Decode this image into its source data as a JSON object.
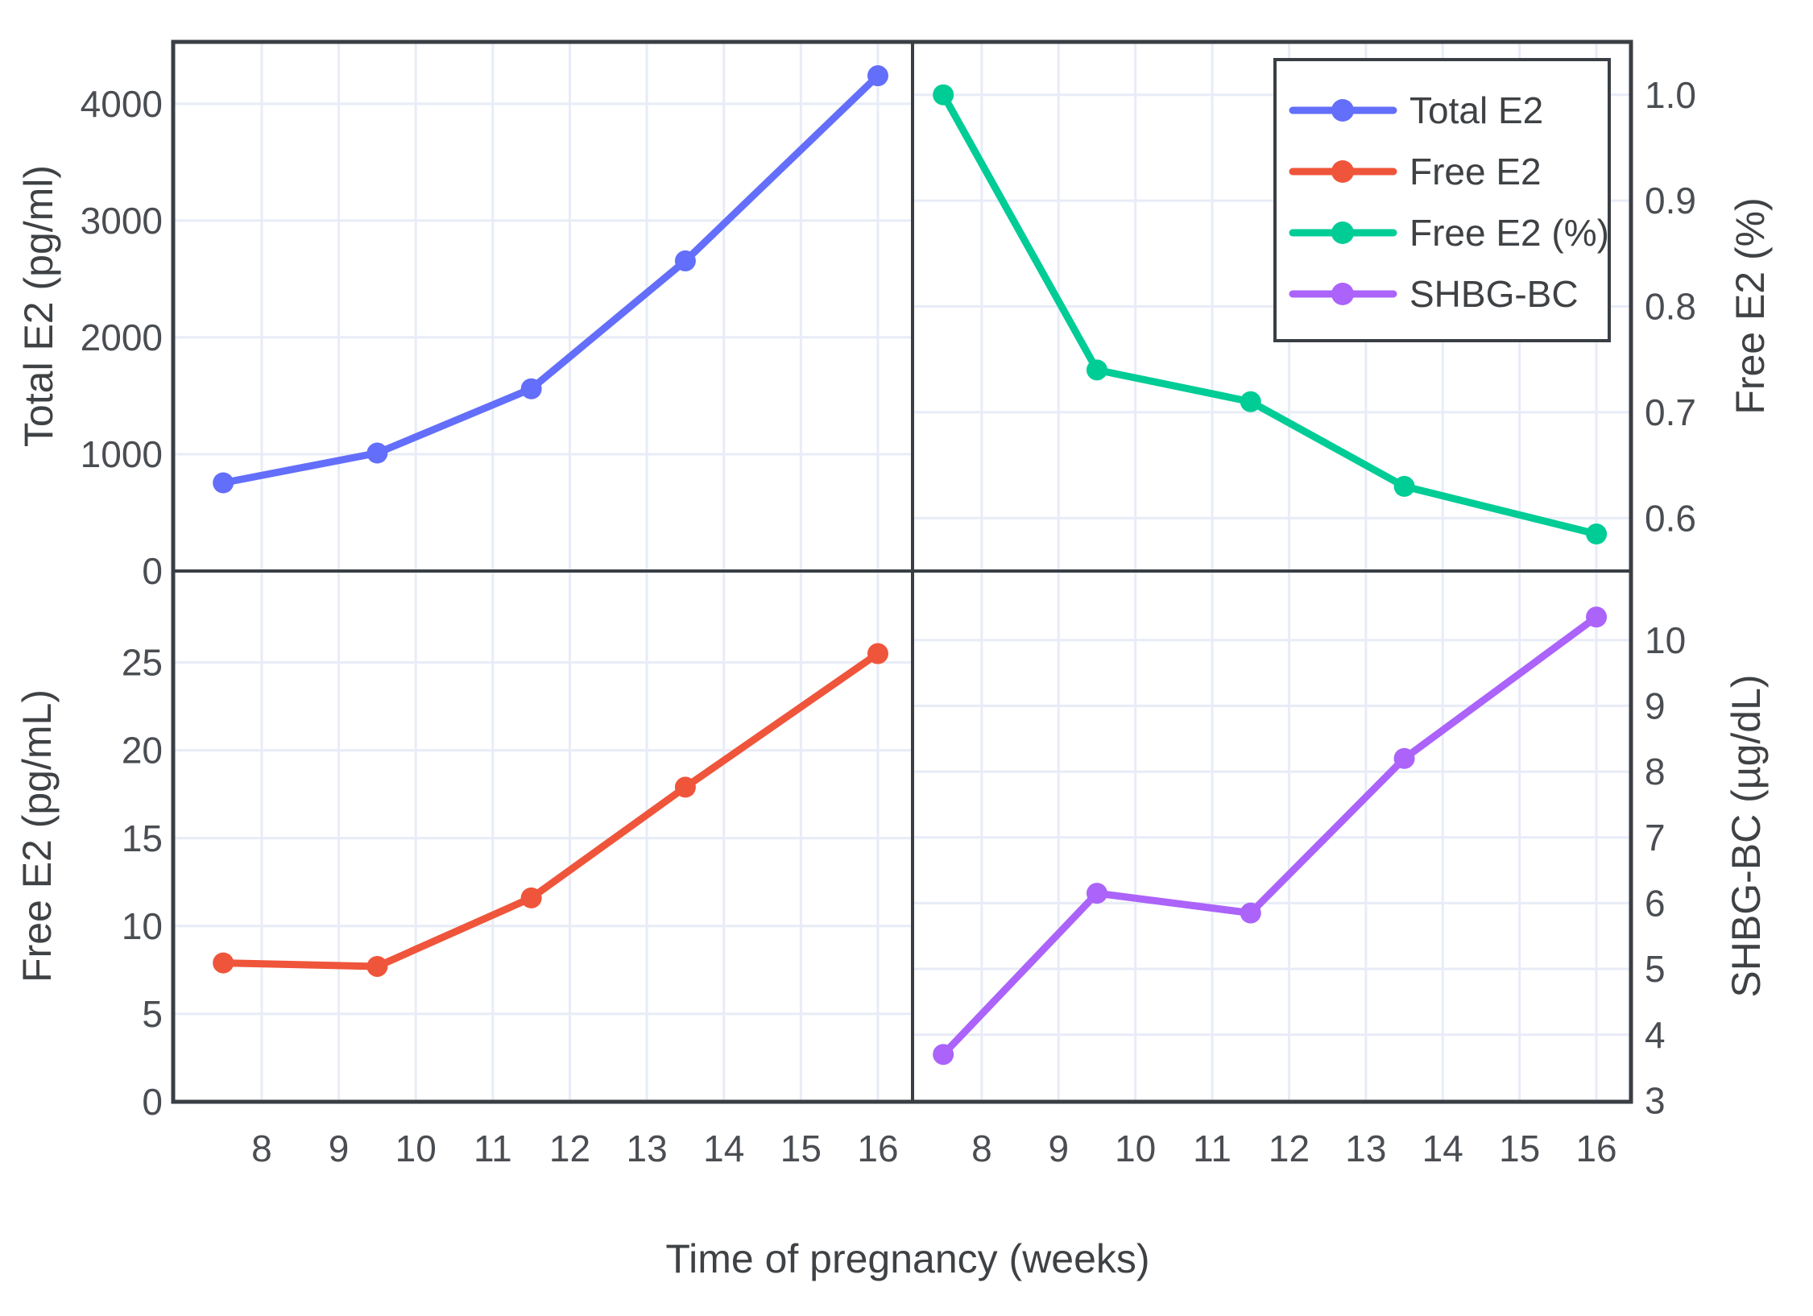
{
  "figure": {
    "xlabel": "Time of pregnancy (weeks)",
    "x_ticks": [
      8,
      9,
      10,
      11,
      12,
      13,
      14,
      15,
      16
    ],
    "weeks": [
      7.5,
      9.5,
      11.5,
      13.5,
      16
    ],
    "background": "#ffffff",
    "grid_color": "#e8ecf7",
    "border_color": "#3a3f45",
    "tick_text_color": "#4a4d52",
    "grid_on": true
  },
  "chart_data": [
    {
      "type": "line",
      "panel": "top-left",
      "series_name": "Total E2",
      "color": "#636EFA",
      "ylabel": "Total E2 (pg/ml)",
      "ylabel_side": "left",
      "x": [
        7.5,
        9.5,
        11.5,
        13.5,
        16
      ],
      "y": [
        755,
        1010,
        1560,
        2655,
        4240
      ],
      "y_ticks": [
        0,
        1000,
        2000,
        3000,
        4000
      ],
      "y_tick_labels": [
        "0",
        "1000",
        "2000",
        "3000",
        "4000"
      ],
      "ylim": [
        0,
        4530
      ],
      "xlim": [
        6.85,
        16.45
      ]
    },
    {
      "type": "line",
      "panel": "top-right",
      "series_name": "Free E2 (%)",
      "color": "#00CC96",
      "ylabel": "Free E2 (%)",
      "ylabel_side": "right",
      "x": [
        7.5,
        9.5,
        11.5,
        13.5,
        16
      ],
      "y": [
        1.0,
        0.74,
        0.71,
        0.63,
        0.585
      ],
      "y_ticks": [
        0.6,
        0.7,
        0.8,
        0.9,
        1.0
      ],
      "y_tick_labels": [
        "0.6",
        "0.7",
        "0.8",
        "0.9",
        "1.0"
      ],
      "ylim": [
        0.55,
        1.05
      ],
      "xlim": [
        7.1,
        16.45
      ]
    },
    {
      "type": "line",
      "panel": "bottom-left",
      "series_name": "Free E2",
      "color": "#EF553B",
      "ylabel": "Free E2 (pg/mL)",
      "ylabel_side": "left",
      "x": [
        7.5,
        9.5,
        11.5,
        13.5,
        16
      ],
      "y": [
        7.9,
        7.7,
        11.6,
        17.9,
        25.5
      ],
      "y_ticks": [
        0,
        5,
        10,
        15,
        20,
        25
      ],
      "y_tick_labels": [
        "0",
        "5",
        "10",
        "15",
        "20",
        "25"
      ],
      "ylim": [
        0,
        30.2
      ],
      "xlim": [
        6.85,
        16.45
      ]
    },
    {
      "type": "line",
      "panel": "bottom-right",
      "series_name": "SHBG-BC",
      "color": "#AB63FA",
      "ylabel": "SHBG-BC (µg/dL)",
      "ylabel_side": "right",
      "x": [
        7.5,
        9.5,
        11.5,
        13.5,
        16
      ],
      "y": [
        3.7,
        6.15,
        5.85,
        8.2,
        10.35
      ],
      "y_ticks": [
        3,
        4,
        5,
        6,
        7,
        8,
        9,
        10
      ],
      "y_tick_labels": [
        "3",
        "4",
        "5",
        "6",
        "7",
        "8",
        "9",
        "10"
      ],
      "ylim": [
        2.98,
        11.05
      ],
      "xlim": [
        7.1,
        16.45
      ]
    }
  ],
  "legend": {
    "position": "top-right-panel",
    "items": [
      {
        "label": "Total E2",
        "color": "#636EFA"
      },
      {
        "label": "Free E2",
        "color": "#EF553B"
      },
      {
        "label": "Free E2 (%)",
        "color": "#00CC96"
      },
      {
        "label": "SHBG-BC",
        "color": "#AB63FA"
      }
    ]
  }
}
